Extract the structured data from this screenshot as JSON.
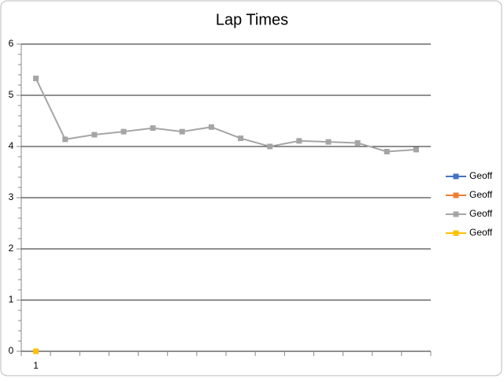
{
  "chart_data": {
    "type": "line",
    "title": "Lap Times",
    "categories": [
      "1",
      null,
      null,
      null,
      null,
      null,
      null,
      null,
      null,
      null,
      null,
      null,
      null,
      null
    ],
    "series": [
      {
        "name": "Geoff",
        "color": "#4472c4",
        "values": [
          null,
          null,
          null,
          null,
          null,
          null,
          null,
          null,
          null,
          null,
          null,
          null,
          null,
          null
        ]
      },
      {
        "name": "Geoff",
        "color": "#ed7d31",
        "values": [
          null,
          null,
          null,
          null,
          null,
          null,
          null,
          null,
          null,
          null,
          null,
          null,
          null,
          null
        ]
      },
      {
        "name": "Geoff",
        "color": "#a5a5a5",
        "values": [
          5.33,
          4.14,
          4.23,
          4.29,
          4.36,
          4.29,
          4.38,
          4.16,
          4.0,
          4.11,
          4.09,
          4.07,
          3.9,
          3.94
        ]
      },
      {
        "name": "Geoff",
        "color": "#ffc000",
        "values": [
          0,
          null,
          null,
          null,
          null,
          null,
          null,
          null,
          null,
          null,
          null,
          null,
          null,
          null
        ]
      }
    ],
    "ylim": [
      0,
      6
    ],
    "yticks": [
      0,
      1,
      2,
      3,
      4,
      5,
      6
    ],
    "grid": true,
    "legend": "right"
  }
}
